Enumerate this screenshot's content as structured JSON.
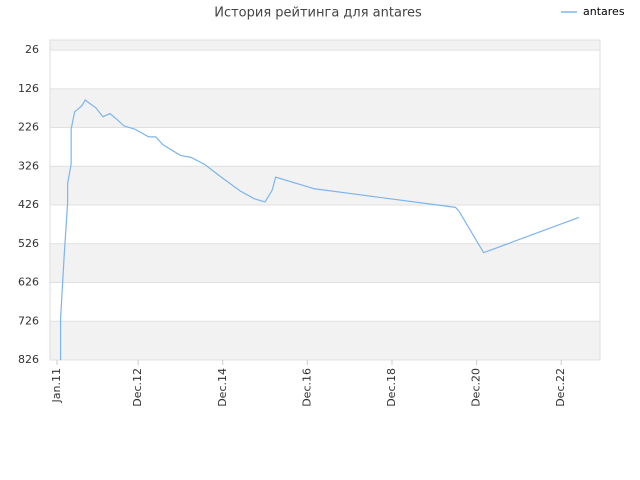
{
  "chart_data": {
    "type": "line",
    "title": "История рейтинга для antares",
    "x": [
      "2011-02",
      "2011-02",
      "2011-03",
      "2011-04",
      "2011-04",
      "2011-05",
      "2011-05",
      "2011-06",
      "2011-07",
      "2011-08",
      "2011-09",
      "2011-10",
      "2011-12",
      "2012-02",
      "2012-04",
      "2012-06",
      "2012-08",
      "2012-11",
      "2013-03",
      "2013-05",
      "2013-07",
      "2013-12",
      "2014-03",
      "2014-07",
      "2014-11",
      "2015-05",
      "2015-09",
      "2015-12",
      "2016-02",
      "2016-03",
      "2017-02",
      "2020-06",
      "2020-07",
      "2021-02",
      "2023-05"
    ],
    "series": [
      {
        "name": "antares",
        "color": "#7cb5ec",
        "values": [
          826,
          720,
          560,
          420,
          370,
          320,
          230,
          185,
          178,
          170,
          155,
          162,
          175,
          198,
          190,
          205,
          222,
          230,
          250,
          250,
          270,
          298,
          303,
          322,
          350,
          390,
          410,
          418,
          388,
          354,
          384,
          432,
          442,
          549,
          458
        ]
      }
    ],
    "ylim": [
      0,
      826
    ],
    "y_inverted": true,
    "yticks": [
      26,
      126,
      226,
      326,
      426,
      526,
      626,
      726,
      826
    ],
    "xlim": [
      "2010-11",
      "2023-11"
    ],
    "xticks": [
      {
        "value": "2011-01",
        "label": "Jan.11"
      },
      {
        "value": "2012-12",
        "label": "Dec.12"
      },
      {
        "value": "2014-12",
        "label": "Dec.14"
      },
      {
        "value": "2016-12",
        "label": "Dec.16"
      },
      {
        "value": "2018-12",
        "label": "Dec.18"
      },
      {
        "value": "2020-12",
        "label": "Dec.20"
      },
      {
        "value": "2022-12",
        "label": "Dec.22"
      }
    ],
    "grid": true,
    "legend": "top-right"
  }
}
